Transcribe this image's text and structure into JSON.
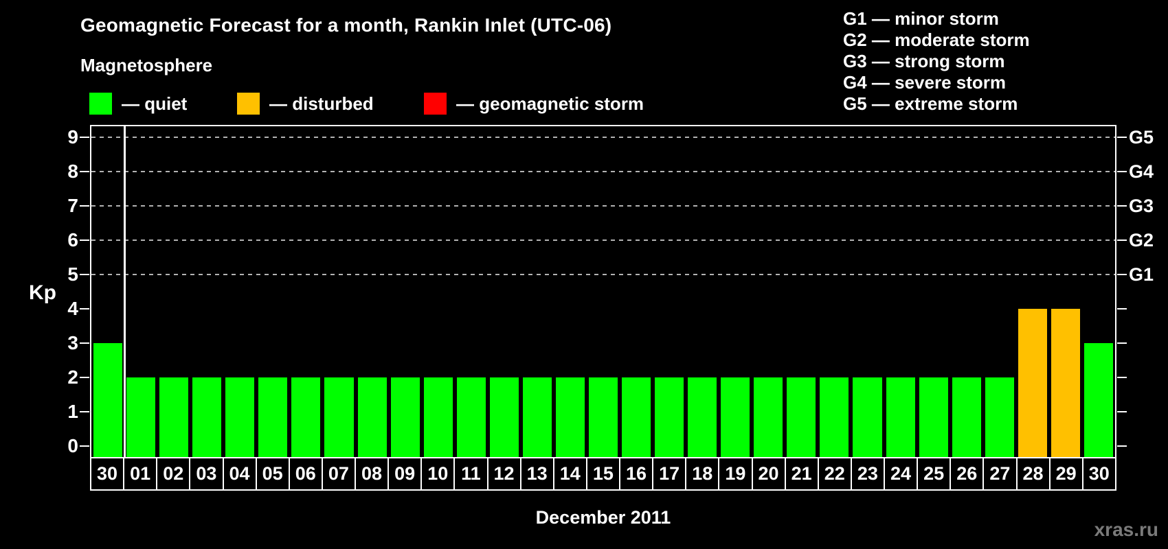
{
  "title": "Geomagnetic Forecast for a month, Rankin Inlet (UTC-06)",
  "legend": {
    "heading": "Magnetosphere",
    "items": [
      {
        "label": "— quiet",
        "state": "quiet",
        "color": "#00FF00"
      },
      {
        "label": "— disturbed",
        "state": "disturbed",
        "color": "#FFC000"
      },
      {
        "label": "— geomagnetic storm",
        "state": "storm",
        "color": "#FF0000"
      }
    ]
  },
  "g_scale_legend": [
    "G1 — minor storm",
    "G2 — moderate storm",
    "G3 — strong storm",
    "G4 — severe storm",
    "G5 — extreme storm"
  ],
  "watermark": "xras.ru",
  "chart_data": {
    "type": "bar",
    "title": "Geomagnetic Forecast for a month, Rankin Inlet (UTC-06)",
    "xlabel": "December 2011",
    "ylabel": "Kp",
    "ylim": [
      0,
      9
    ],
    "grid": true,
    "grid_levels": [
      5,
      6,
      7,
      8,
      9
    ],
    "yticks": [
      0,
      1,
      2,
      3,
      4,
      5,
      6,
      7,
      8,
      9
    ],
    "right_axis": [
      {
        "kp": 5,
        "label": "G1"
      },
      {
        "kp": 6,
        "label": "G2"
      },
      {
        "kp": 7,
        "label": "G3"
      },
      {
        "kp": 8,
        "label": "G4"
      },
      {
        "kp": 9,
        "label": "G5"
      }
    ],
    "categories": [
      "30",
      "01",
      "02",
      "03",
      "04",
      "05",
      "06",
      "07",
      "08",
      "09",
      "10",
      "11",
      "12",
      "13",
      "14",
      "15",
      "16",
      "17",
      "18",
      "19",
      "20",
      "21",
      "22",
      "23",
      "24",
      "25",
      "26",
      "27",
      "28",
      "29",
      "30"
    ],
    "values": [
      3,
      2,
      2,
      2,
      2,
      2,
      2,
      2,
      2,
      2,
      2,
      2,
      2,
      2,
      2,
      2,
      2,
      2,
      2,
      2,
      2,
      2,
      2,
      2,
      2,
      2,
      2,
      2,
      4,
      4,
      3
    ],
    "states": [
      "quiet",
      "quiet",
      "quiet",
      "quiet",
      "quiet",
      "quiet",
      "quiet",
      "quiet",
      "quiet",
      "quiet",
      "quiet",
      "quiet",
      "quiet",
      "quiet",
      "quiet",
      "quiet",
      "quiet",
      "quiet",
      "quiet",
      "quiet",
      "quiet",
      "quiet",
      "quiet",
      "quiet",
      "quiet",
      "quiet",
      "quiet",
      "quiet",
      "disturbed",
      "disturbed",
      "quiet"
    ],
    "state_colors": {
      "quiet": "#00FF00",
      "disturbed": "#FFC000",
      "storm": "#FF0000"
    },
    "separator_after_index": 0
  }
}
